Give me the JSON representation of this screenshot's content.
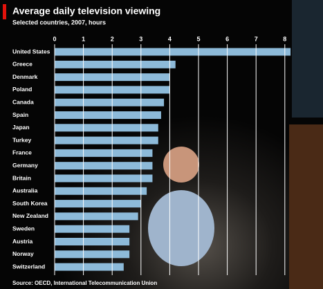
{
  "chart_data": {
    "type": "bar",
    "orientation": "horizontal",
    "title": "Average daily television viewing",
    "subtitle": "Selected countries, 2007, hours",
    "source": "Source: OECD, International Telecommunication Union",
    "categories": [
      "United States",
      "Greece",
      "Denmark",
      "Poland",
      "Canada",
      "Spain",
      "Japan",
      "Turkey",
      "France",
      "Germany",
      "Britain",
      "Australia",
      "South Korea",
      "New Zealand",
      "Sweden",
      "Austria",
      "Norway",
      "Switzerland"
    ],
    "values": [
      8.2,
      4.2,
      4.0,
      4.0,
      3.8,
      3.7,
      3.6,
      3.6,
      3.4,
      3.4,
      3.4,
      3.2,
      3.0,
      2.9,
      2.6,
      2.6,
      2.6,
      2.4
    ],
    "color": "#8dbad9",
    "xlim": [
      0,
      8.5
    ],
    "xticks": [
      0,
      1,
      2,
      3,
      4,
      5,
      6,
      7,
      8
    ],
    "grid": true
  }
}
